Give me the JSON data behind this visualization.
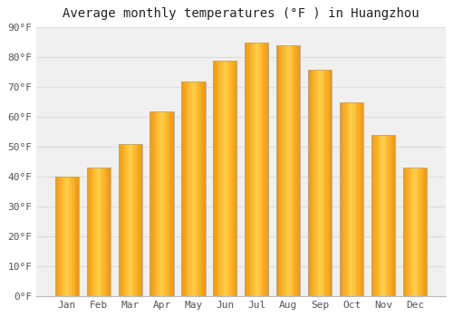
{
  "title": "Average monthly temperatures (°F ) in Huangzhou",
  "months": [
    "Jan",
    "Feb",
    "Mar",
    "Apr",
    "May",
    "Jun",
    "Jul",
    "Aug",
    "Sep",
    "Oct",
    "Nov",
    "Dec"
  ],
  "temperatures": [
    40,
    43,
    51,
    62,
    72,
    79,
    85,
    84,
    76,
    65,
    54,
    43
  ],
  "bar_color_center": "#FFD04A",
  "bar_color_edge": "#F5960A",
  "bar_outline_color": "#AAAAAA",
  "ylim": [
    0,
    90
  ],
  "yticks": [
    0,
    10,
    20,
    30,
    40,
    50,
    60,
    70,
    80,
    90
  ],
  "ytick_labels": [
    "0°F",
    "10°F",
    "20°F",
    "30°F",
    "40°F",
    "50°F",
    "60°F",
    "70°F",
    "80°F",
    "90°F"
  ],
  "background_color": "#ffffff",
  "plot_bg_color": "#f0f0f0",
  "grid_color": "#dddddd",
  "title_fontsize": 10,
  "tick_fontsize": 8,
  "font_family": "monospace"
}
